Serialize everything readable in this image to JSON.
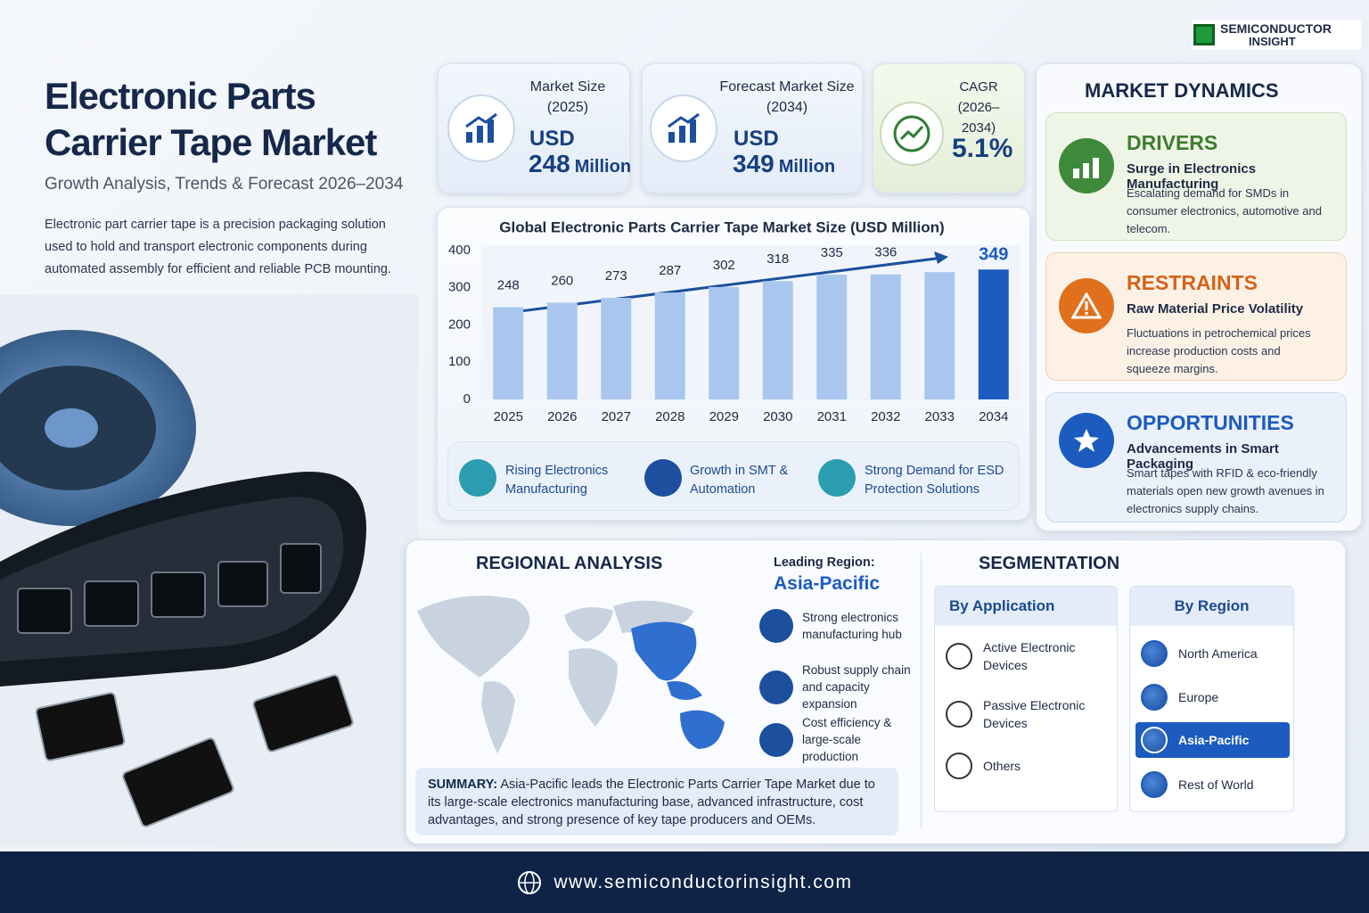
{
  "brand": {
    "line1": "SEMICONDUCTOR",
    "line2": "INSIGHT"
  },
  "header": {
    "title_lines": [
      "Electronic Parts",
      "Carrier Tape Market"
    ],
    "subtitle": "Growth Analysis, Trends & Forecast 2026–2034",
    "description": "Electronic part carrier tape is a precision packaging solution used to hold and transport electronic components during automated assembly for efficient and reliable PCB mounting."
  },
  "kpis": [
    {
      "label": "Market Size (2025)",
      "currency": "USD",
      "value": "248",
      "unit": "Million"
    },
    {
      "label": "Forecast Market Size (2034)",
      "currency": "USD",
      "value": "349",
      "unit": "Million"
    },
    {
      "label": "CAGR (2026–2034)",
      "value": "5.1%"
    }
  ],
  "chart_data": {
    "type": "bar",
    "title": "Global Electronic Parts Carrier Tape Market Size (USD Million)",
    "categories": [
      "2025",
      "2026",
      "2027",
      "2028",
      "2029",
      "2030",
      "2031",
      "2032",
      "2033",
      "2034"
    ],
    "values": [
      248,
      260,
      273,
      287,
      302,
      318,
      335,
      336,
      342,
      349
    ],
    "value_labels": [
      "248",
      "260",
      "273",
      "287",
      "302",
      "318",
      "335",
      "336",
      null,
      "349"
    ],
    "colors": [
      "#a9c7ee",
      "#a9c7ee",
      "#a9c7ee",
      "#a9c7ee",
      "#a9c7ee",
      "#a9c7ee",
      "#a9c7ee",
      "#a9c7ee",
      "#a9c7ee",
      "#1c5bbf"
    ],
    "ylim": [
      0,
      400
    ],
    "yticks": [
      0,
      100,
      200,
      300,
      400
    ],
    "grid": false
  },
  "chart_highlights": [
    "Rising Electronics Manufacturing",
    "Growth in SMT & Automation",
    "Strong Demand for ESD Protection Solutions"
  ],
  "market_dynamics": {
    "title": "MARKET DYNAMICS",
    "items": [
      {
        "heading": "DRIVERS",
        "subheading": "Surge in Electronics Manufacturing",
        "text": "Escalating demand for SMDs in consumer electronics, automotive and telecom."
      },
      {
        "heading": "RESTRAINTS",
        "subheading": "Raw Material Price Volatility",
        "text": "Fluctuations in petrochemical prices increase production costs and squeeze margins."
      },
      {
        "heading": "OPPORTUNITIES",
        "subheading": "Advancements in Smart Packaging",
        "text": "Smart tapes with RFID & eco-friendly materials open new growth avenues in electronics supply chains."
      }
    ]
  },
  "regional": {
    "title": "REGIONAL ANALYSIS",
    "leading_label": "Leading Region:",
    "leading_region": "Asia-Pacific",
    "points": [
      "Strong electronics manufacturing hub",
      "Robust supply chain and capacity expansion",
      "Cost efficiency & large-scale production"
    ],
    "summary_label": "SUMMARY:",
    "summary": "Asia-Pacific leads the Electronic Parts Carrier Tape Market due to its large-scale electronics manufacturing base, advanced infrastructure, cost advantages, and strong presence of key tape producers and OEMs."
  },
  "segmentation": {
    "title": "SEGMENTATION",
    "by_application": {
      "header": "By Application",
      "items": [
        "Active Electronic Devices",
        "Passive Electronic Devices",
        "Others"
      ]
    },
    "by_region": {
      "header": "By Region",
      "items": [
        "North America",
        "Europe",
        "Asia-Pacific",
        "Rest of World"
      ]
    }
  },
  "footer": {
    "url": "www.semiconductorinsight.com"
  }
}
